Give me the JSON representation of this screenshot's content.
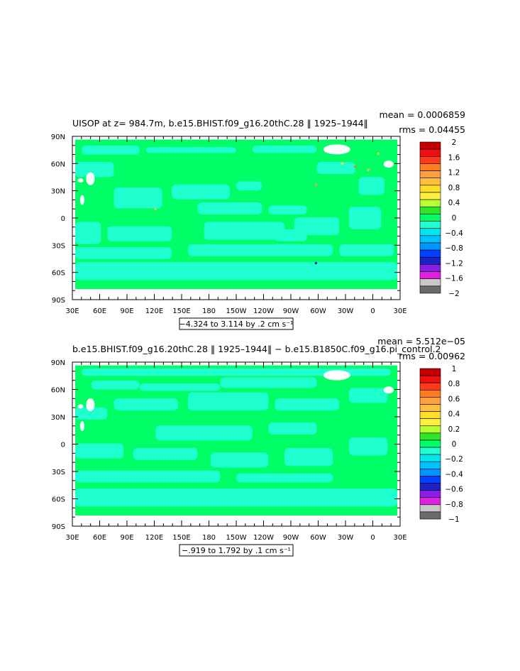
{
  "chart_data": [
    {
      "type": "heatmap",
      "title": "UISOP at z= 984.7m, b.e15.BHIST.f09_g16.20thC.28 ‖ 1925–1944‖",
      "stats": {
        "mean": "mean = 0.0006859",
        "rms": "rms = 0.04455"
      },
      "x_ticks": [
        "30E",
        "60E",
        "90E",
        "120E",
        "150E",
        "180",
        "150W",
        "120W",
        "90W",
        "60W",
        "30W",
        "0",
        "30E"
      ],
      "y_ticks": [
        "90N",
        "60N",
        "30N",
        "0",
        "30S",
        "60S",
        "90S"
      ],
      "range_label": "−4.324 to 3.114 by .2 cm s⁻¹",
      "colorbar_labels": [
        "2",
        "1.6",
        "1.2",
        "0.8",
        "0.4",
        "0",
        "−0.4",
        "−0.8",
        "−1.2",
        "−1.6",
        "−2"
      ],
      "colorbar_colors": [
        "#c40000",
        "#ee1010",
        "#ff3a1a",
        "#ff7d1e",
        "#ffa040",
        "#ffbe3c",
        "#ffde2a",
        "#fff040",
        "#b8ff30",
        "#2ee628",
        "#00ff66",
        "#20ffd0",
        "#00e6f0",
        "#00c2ff",
        "#0094ff",
        "#0040ff",
        "#1e20c8",
        "#8a1ee6",
        "#e020e0",
        "#c8c8c8",
        "#6a6a6a"
      ],
      "field_colors": {
        "ocean": "#00ff66",
        "neg": "#20ffd0",
        "missing": "#ffffff"
      }
    },
    {
      "type": "heatmap",
      "title": "b.e15.BHIST.f09_g16.20thC.28 ‖ 1925–1944‖ − b.e15.B1850C.f09_g16.pi_control.2",
      "stats": {
        "mean": "mean = 5.512e−05",
        "rms": "rms = 0.00962"
      },
      "x_ticks": [
        "30E",
        "60E",
        "90E",
        "120E",
        "150E",
        "180",
        "150W",
        "120W",
        "90W",
        "60W",
        "30W",
        "0",
        "30E"
      ],
      "y_ticks": [
        "90N",
        "60N",
        "30N",
        "0",
        "30S",
        "60S",
        "90S"
      ],
      "range_label": "−.919 to 1.792 by .1 cm s⁻¹",
      "colorbar_labels": [
        "1",
        "0.8",
        "0.6",
        "0.4",
        "0.2",
        "0",
        "−0.2",
        "−0.4",
        "−0.6",
        "−0.8",
        "−1"
      ],
      "colorbar_colors": [
        "#c40000",
        "#ee1010",
        "#ff3a1a",
        "#ff7d1e",
        "#ffa040",
        "#ffbe3c",
        "#ffde2a",
        "#fff040",
        "#b8ff30",
        "#2ee628",
        "#00ff66",
        "#20ffd0",
        "#00e6f0",
        "#00c2ff",
        "#0094ff",
        "#0040ff",
        "#1e20c8",
        "#8a1ee6",
        "#e020e0",
        "#c8c8c8",
        "#6a6a6a"
      ],
      "field_colors": {
        "ocean": "#00ff66",
        "neg": "#20ffd0",
        "missing": "#ffffff"
      }
    }
  ]
}
